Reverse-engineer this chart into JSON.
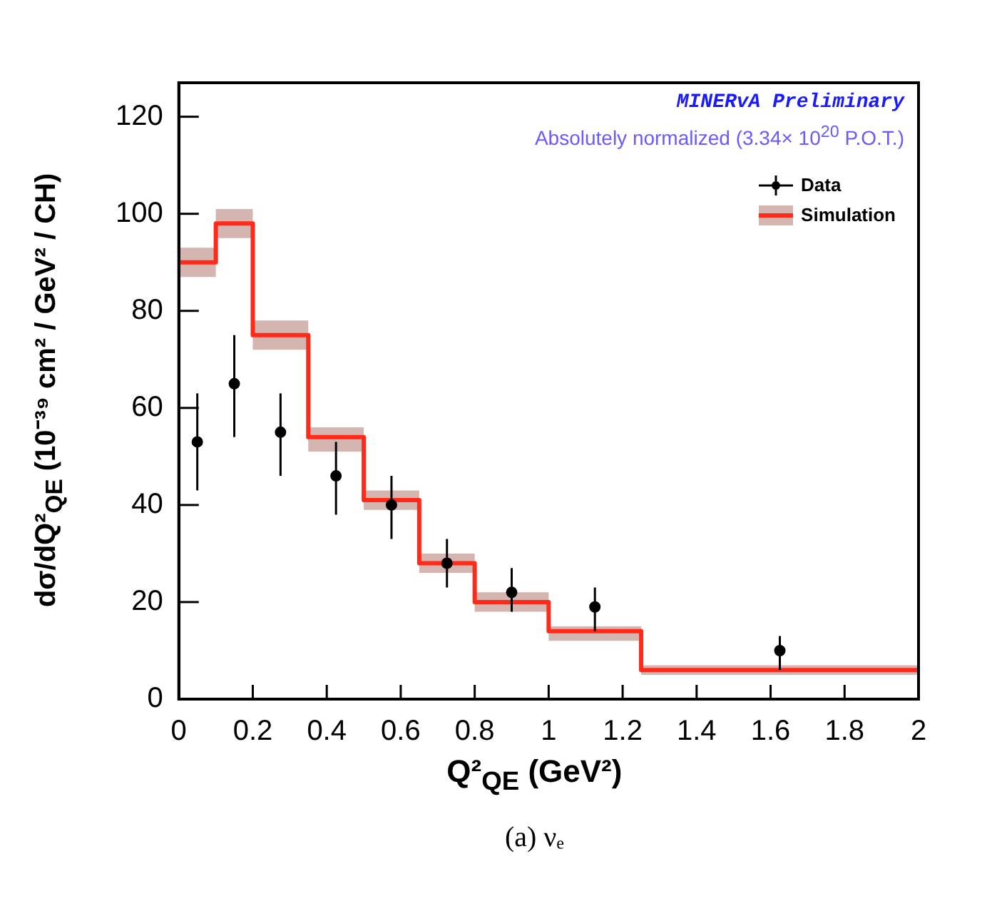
{
  "chart_data": {
    "type": "step",
    "ylabel": "dσ/dQ²$_{QE}$ (10⁻³⁹ cm² / GeV² / CH)",
    "xlabel": "Q²$_{QE}$ (GeV²)",
    "annotations": [
      "MINERvA Preliminary",
      "Absolutely normalized (3.34× 10$^{20}$ P.O.T.)",
      "(a) νₑ"
    ],
    "series": [
      {
        "name": "Data",
        "type": "scatter",
        "marker": "circle",
        "color": "#000000",
        "x": [
          0.05,
          0.15,
          0.275,
          0.425,
          0.575,
          0.725,
          0.9,
          1.125,
          1.625
        ],
        "values": [
          53,
          65,
          55,
          46,
          40,
          28,
          22,
          19,
          10
        ],
        "errors": [
          [
            43,
            63
          ],
          [
            54,
            75
          ],
          [
            46,
            63
          ],
          [
            38,
            53
          ],
          [
            33,
            46
          ],
          [
            23,
            33
          ],
          [
            18,
            27
          ],
          [
            14,
            23
          ],
          [
            6,
            13
          ]
        ]
      },
      {
        "name": "Simulation",
        "color": "#ff2a1a",
        "x": [
          0,
          0.1,
          0.2,
          0.35,
          0.5,
          0.65,
          0.8,
          1.0,
          1.25,
          2.0
        ],
        "values": [
          90,
          98,
          75,
          54,
          41,
          28,
          20,
          14,
          6,
          6
        ],
        "lower": [
          87,
          95,
          72,
          51,
          39,
          26,
          18,
          12,
          5,
          5
        ],
        "upper": [
          93,
          101,
          78,
          56,
          43,
          30,
          22,
          15,
          7,
          7
        ]
      }
    ],
    "xlim": [
      0,
      2
    ],
    "ylim": [
      0,
      127
    ],
    "xticks": [
      0,
      0.2,
      0.4,
      0.6,
      0.8,
      1,
      1.2,
      1.4,
      1.6,
      1.8,
      2
    ],
    "yticks": [
      0,
      20,
      40,
      60,
      80,
      100,
      120
    ],
    "grid": false,
    "legend": "top right"
  }
}
